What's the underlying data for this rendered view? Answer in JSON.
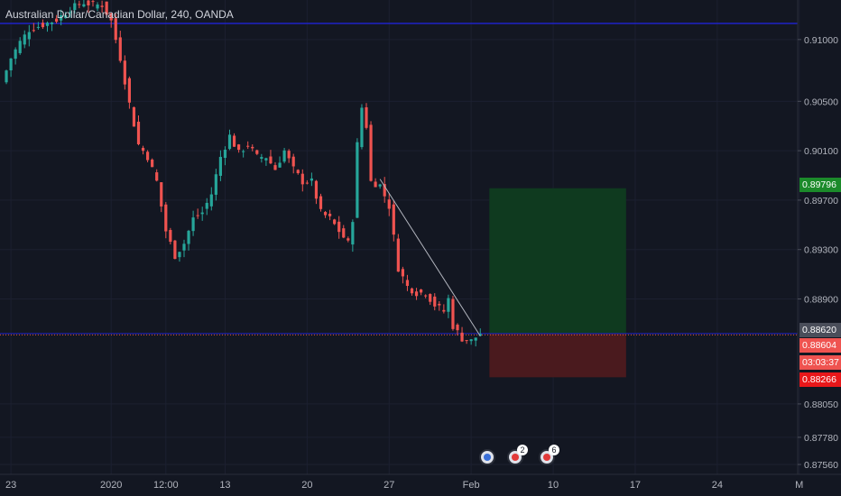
{
  "title": "Australian Dollar/Canadian Dollar, 240, OANDA",
  "colors": {
    "background": "#131722",
    "up": "#26a69a",
    "down": "#ef5350",
    "blueline": "#1e22c8",
    "profit": "#0f3a1f",
    "loss": "#4a1a1e",
    "target_label": "#1b8a2a",
    "current_label": "#ef5350",
    "stop_label": "#e8171a",
    "entry_label": "#4a4e5a"
  },
  "chart_data": {
    "type": "candlestick",
    "instrument": "Australian Dollar/Canadian Dollar",
    "interval": "240",
    "source": "OANDA",
    "ylim": [
      0.8748,
      0.9132
    ],
    "y_ticks": [
      "0.91000",
      "0.90500",
      "0.90100",
      "0.89700",
      "0.89300",
      "0.88900",
      "0.88050",
      "0.87780",
      "0.87560"
    ],
    "y_tick_values": [
      0.91,
      0.905,
      0.901,
      0.897,
      0.893,
      0.889,
      0.8805,
      0.8778,
      0.8756
    ],
    "x_ticks": [
      "23",
      "2020",
      "12:00",
      "13",
      "20",
      "27",
      "Feb",
      "10",
      "17",
      "24",
      "M"
    ],
    "x_tick_bars": [
      2,
      24,
      36,
      49,
      67,
      85,
      103,
      121,
      139,
      157,
      175
    ],
    "horizontal_line": 0.9113,
    "entry_line": 0.8862,
    "price_labels": {
      "target": "0.89796",
      "entry": "0.88620",
      "current": "0.88604",
      "countdown": "03:03:37",
      "stop": "0.88266"
    },
    "position": {
      "entry": 0.8862,
      "target": 0.89796,
      "stop": 0.88266,
      "start_bar": 107,
      "end_bar": 137
    },
    "trendline": {
      "start": [
        83,
        0.8987
      ],
      "end": [
        105,
        0.886
      ]
    },
    "waypoints": [
      [
        0,
        0.9065
      ],
      [
        2,
        0.9085
      ],
      [
        4,
        0.9098
      ],
      [
        6,
        0.9108
      ],
      [
        9,
        0.9112
      ],
      [
        12,
        0.9116
      ],
      [
        15,
        0.9125
      ],
      [
        18,
        0.913
      ],
      [
        20,
        0.9128
      ],
      [
        22,
        0.9128
      ],
      [
        24,
        0.9115
      ],
      [
        26,
        0.9085
      ],
      [
        28,
        0.9048
      ],
      [
        30,
        0.9015
      ],
      [
        32,
        0.9005
      ],
      [
        34,
        0.8985
      ],
      [
        36,
        0.8945
      ],
      [
        38,
        0.8925
      ],
      [
        40,
        0.8935
      ],
      [
        42,
        0.8955
      ],
      [
        44,
        0.896
      ],
      [
        46,
        0.8975
      ],
      [
        48,
        0.9005
      ],
      [
        50,
        0.9022
      ],
      [
        52,
        0.9008
      ],
      [
        54,
        0.9015
      ],
      [
        56,
        0.9005
      ],
      [
        58,
        0.9005
      ],
      [
        60,
        0.8995
      ],
      [
        62,
        0.901
      ],
      [
        64,
        0.8995
      ],
      [
        66,
        0.8985
      ],
      [
        68,
        0.8985
      ],
      [
        70,
        0.896
      ],
      [
        72,
        0.8955
      ],
      [
        74,
        0.8945
      ],
      [
        76,
        0.8935
      ],
      [
        77,
        0.8955
      ],
      [
        78,
        0.9015
      ],
      [
        79,
        0.9045
      ],
      [
        80,
        0.903
      ],
      [
        81,
        0.8985
      ],
      [
        83,
        0.8982
      ],
      [
        85,
        0.8965
      ],
      [
        87,
        0.8915
      ],
      [
        89,
        0.89
      ],
      [
        91,
        0.8895
      ],
      [
        93,
        0.8895
      ],
      [
        95,
        0.8885
      ],
      [
        97,
        0.888
      ],
      [
        98,
        0.889
      ],
      [
        99,
        0.8868
      ],
      [
        101,
        0.8858
      ],
      [
        103,
        0.8856
      ],
      [
        105,
        0.8862
      ]
    ]
  },
  "events": [
    {
      "name": "event-icon-1",
      "count": ""
    },
    {
      "name": "event-icon-2",
      "count": "2"
    },
    {
      "name": "event-icon-3",
      "count": "6"
    }
  ]
}
